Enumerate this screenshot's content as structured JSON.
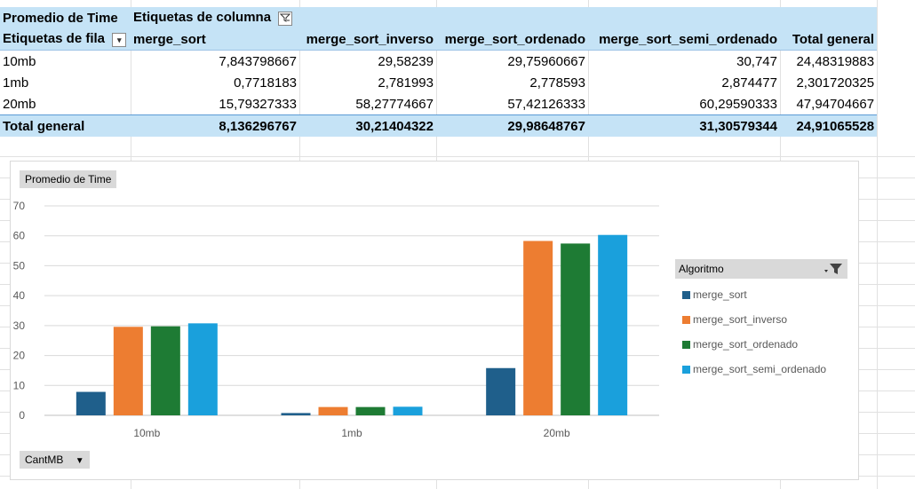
{
  "pivot": {
    "header_row1": {
      "value_label": "Promedio de Time",
      "col_labels": "Etiquetas de columna"
    },
    "header_row2": {
      "row_labels": "Etiquetas de fila",
      "columns": [
        "merge_sort",
        "merge_sort_inverso",
        "merge_sort_ordenado",
        "merge_sort_semi_ordenado",
        "Total general"
      ]
    },
    "rows": [
      {
        "label": "10mb",
        "values": [
          "7,843798667",
          "29,58239",
          "29,75960667",
          "30,747",
          "24,48319883"
        ]
      },
      {
        "label": "1mb",
        "values": [
          "0,7718183",
          "2,781993",
          "2,778593",
          "2,874477",
          "2,301720325"
        ]
      },
      {
        "label": "20mb",
        "values": [
          "15,79327333",
          "58,27774667",
          "57,42126333",
          "60,29590333",
          "47,94704667"
        ]
      }
    ],
    "total": {
      "label": "Total general",
      "values": [
        "8,136296767",
        "30,21404322",
        "29,98648767",
        "31,30579344",
        "24,91065528"
      ]
    }
  },
  "chart_buttons": {
    "value_field": "Promedio de Time",
    "axis_field": "CantMB",
    "legend_field": "Algoritmo"
  },
  "chart_data": {
    "type": "bar",
    "categories": [
      "10mb",
      "1mb",
      "20mb"
    ],
    "series": [
      {
        "name": "merge_sort",
        "color": "#1f5f8b",
        "values": [
          7.843798667,
          0.7718183,
          15.79327333
        ]
      },
      {
        "name": "merge_sort_inverso",
        "color": "#ed7d31",
        "values": [
          29.58239,
          2.781993,
          58.27774667
        ]
      },
      {
        "name": "merge_sort_ordenado",
        "color": "#1e7b34",
        "values": [
          29.75960667,
          2.778593,
          57.42126333
        ]
      },
      {
        "name": "merge_sort_semi_ordenado",
        "color": "#1aa0dc",
        "values": [
          30.747,
          2.874477,
          60.29590333
        ]
      }
    ],
    "ylim": [
      0,
      70
    ],
    "yticks": [
      0,
      10,
      20,
      30,
      40,
      50,
      60,
      70
    ],
    "grid": true,
    "legend_position": "right"
  }
}
